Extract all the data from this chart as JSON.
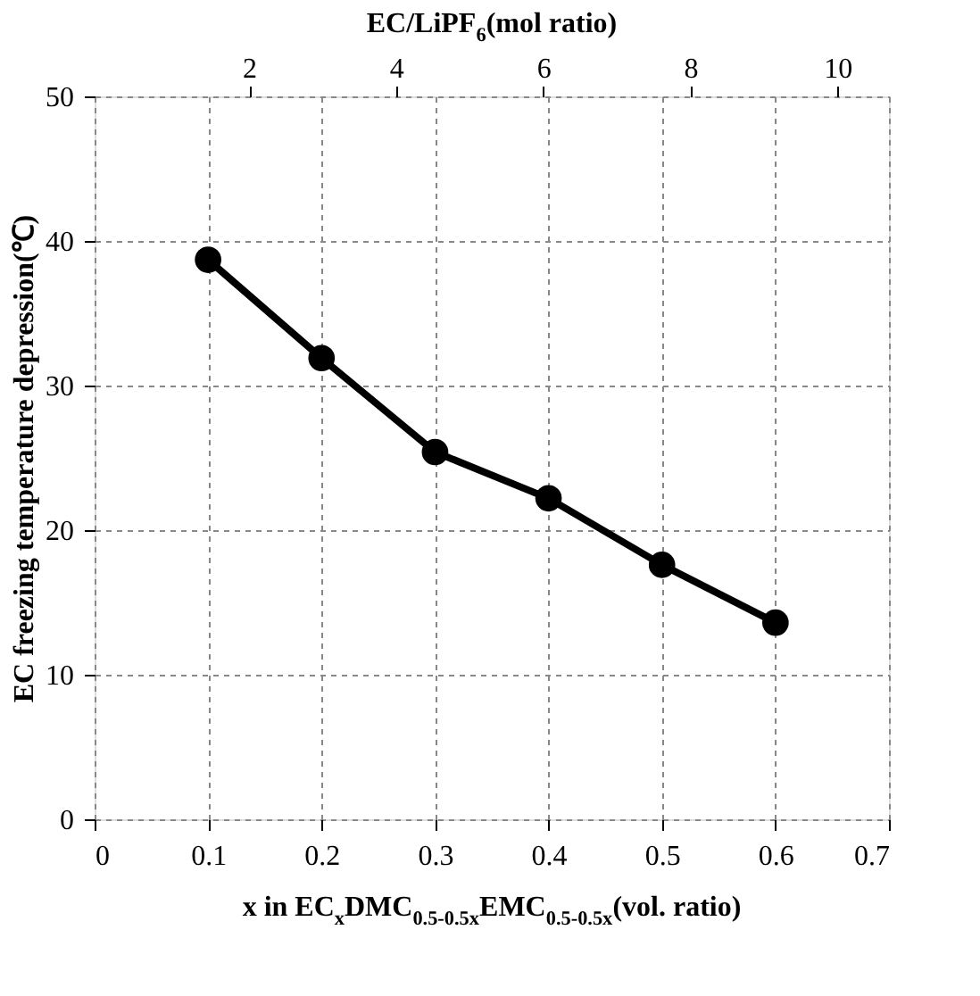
{
  "chart_data": {
    "type": "line",
    "xlabel": "x in EC$_{x}$DMC$_{0.5-0.5x}$EMC$_{0.5-0.5x}$(vol. ratio)",
    "ylabel": "EC freezing temperature depression(℃)",
    "x2label": "EC/LiPF$_{6}$(mol ratio)",
    "x": [
      0.1,
      0.2,
      0.3,
      0.4,
      0.5,
      0.6
    ],
    "series": [
      {
        "color": "#000000",
        "values": [
          38.7,
          31.9,
          25.4,
          22.2,
          17.6,
          13.6
        ]
      }
    ],
    "xlim": [
      0,
      0.7
    ],
    "xticks": [
      {
        "value": 0,
        "label": "0"
      },
      0.1,
      0.2,
      0.3,
      0.4,
      0.5,
      0.6,
      0.7
    ],
    "ylim": [
      0,
      50
    ],
    "yticks": [
      0,
      10,
      20,
      30,
      40,
      50
    ],
    "x2lim": [
      -0.1,
      10.7
    ],
    "x2ticks": [
      2,
      4,
      6,
      8,
      10
    ],
    "grid": true,
    "marker": "circle",
    "line_style": "solid"
  }
}
